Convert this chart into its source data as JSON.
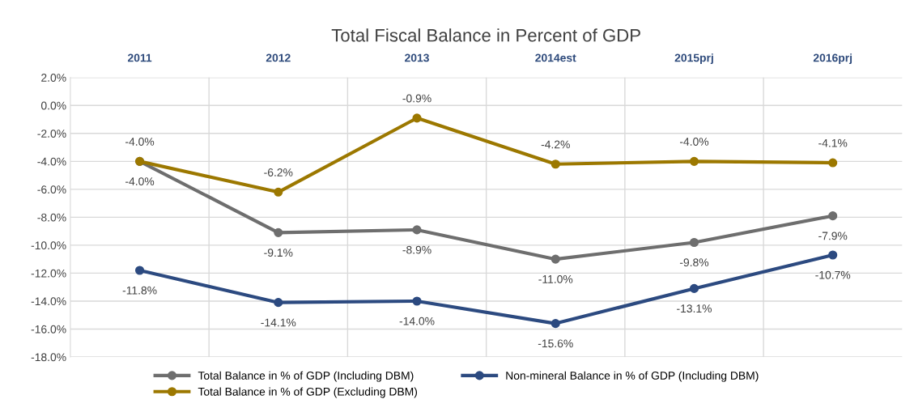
{
  "chart_data": {
    "type": "line",
    "title": "Total Fiscal Balance in Percent of GDP",
    "categories": [
      "2011",
      "2012",
      "2013",
      "2014est",
      "2015prj",
      "2016prj"
    ],
    "series": [
      {
        "name": "Total Balance in % of GDP (Including DBM)",
        "color": "#6e6e6e",
        "values": [
          -4.0,
          -9.1,
          -8.9,
          -11.0,
          -9.8,
          -7.9
        ],
        "value_labels": [
          "-4.0%",
          "-9.1%",
          "-8.9%",
          "-11.0%",
          "-9.8%",
          "-7.9%"
        ]
      },
      {
        "name": "Total Balance in % of GDP (Excluding DBM)",
        "color": "#9c7800",
        "values": [
          -4.0,
          -6.2,
          -0.9,
          -4.2,
          -4.0,
          -4.1
        ],
        "value_labels": [
          "-4.0%",
          "-6.2%",
          "-0.9%",
          "-4.2%",
          "-4.0%",
          "-4.1%"
        ]
      },
      {
        "name": "Non-mineral Balance in % of GDP (Including DBM)",
        "color": "#2c4a80",
        "values": [
          -11.8,
          -14.1,
          -14.0,
          -15.6,
          -13.1,
          -10.7
        ],
        "value_labels": [
          "-11.8%",
          "-14.1%",
          "-14.0%",
          "-15.6%",
          "-13.1%",
          "-10.7%"
        ]
      }
    ],
    "ylim": [
      -18,
      2
    ],
    "yticks": [
      {
        "value": -18,
        "label": "-18.0%"
      },
      {
        "value": -16,
        "label": "-16.0%"
      },
      {
        "value": -14,
        "label": "-14.0%"
      },
      {
        "value": -12,
        "label": "-12.0%"
      },
      {
        "value": -10,
        "label": "-10.0%"
      },
      {
        "value": -8,
        "label": "-8.0%"
      },
      {
        "value": -6,
        "label": "-6.0%"
      },
      {
        "value": -4,
        "label": "-4.0%"
      },
      {
        "value": -2,
        "label": "-2.0%"
      },
      {
        "value": 0,
        "label": "0.0%"
      },
      {
        "value": 2,
        "label": "2.0%"
      }
    ],
    "grid": true,
    "legend": "bottom",
    "marker": "circle",
    "line_style": "solid"
  }
}
